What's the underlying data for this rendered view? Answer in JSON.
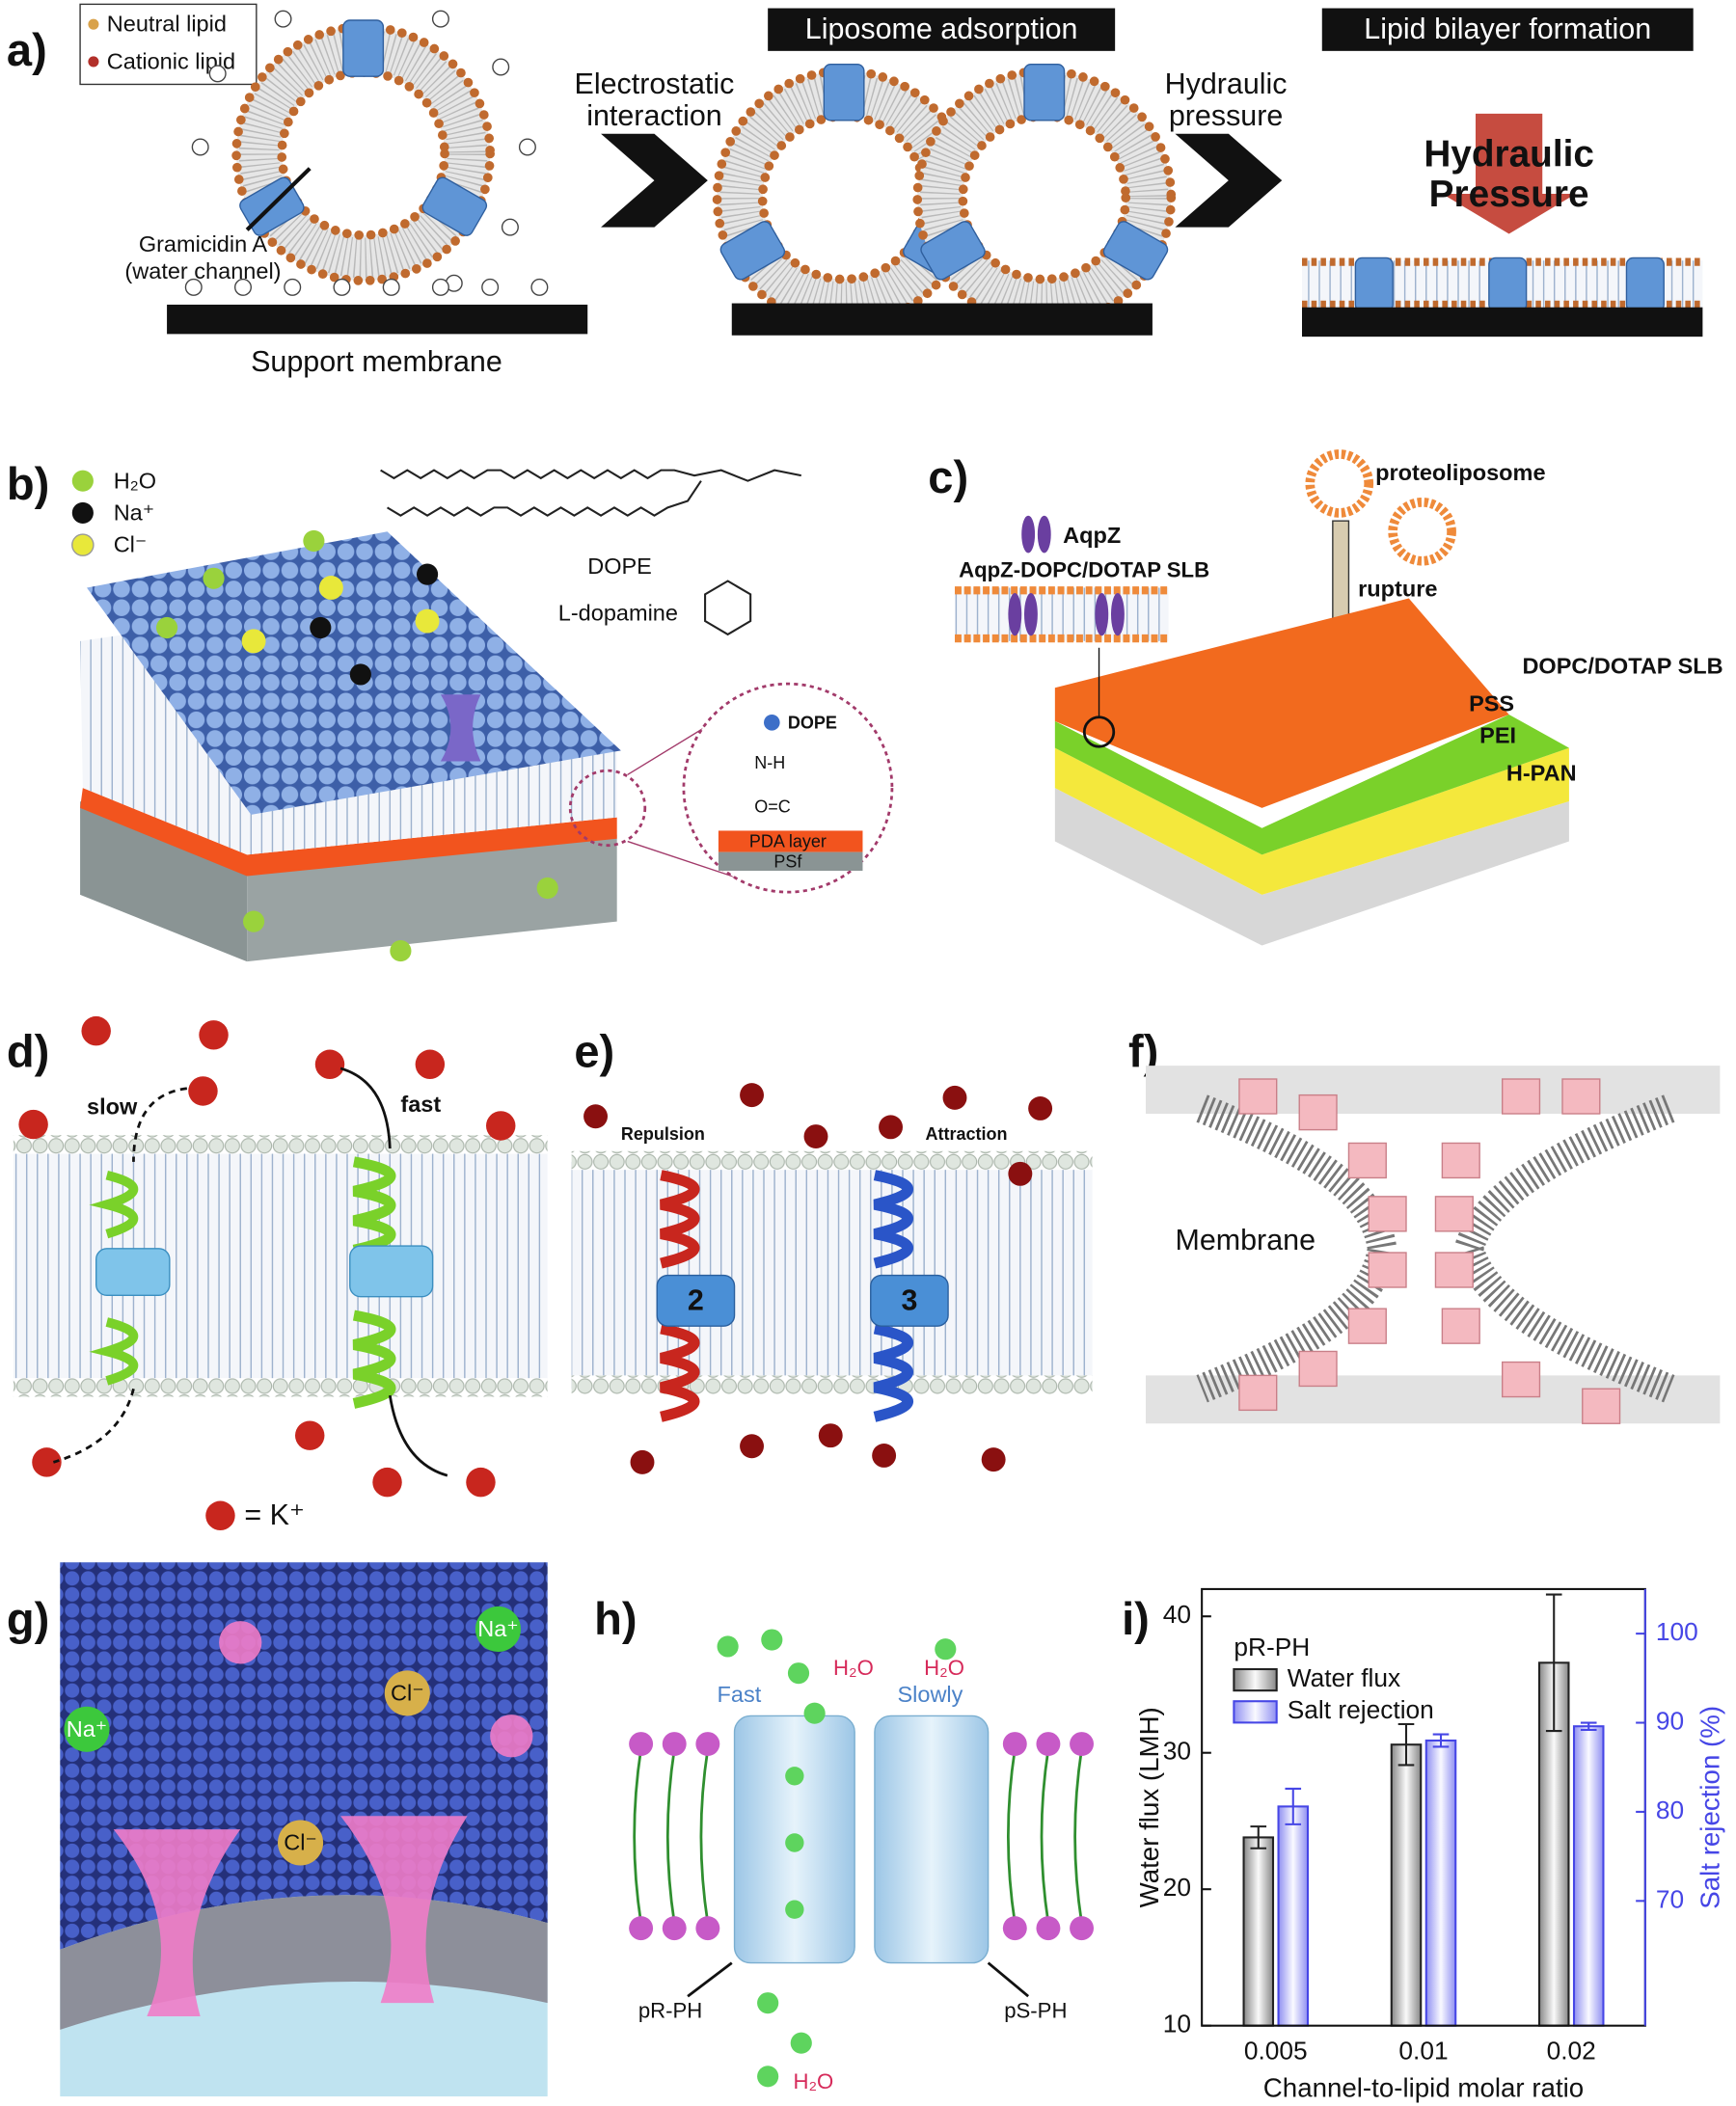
{
  "panels": {
    "a": {
      "label": "a)",
      "legend": [
        "Neutral lipid",
        "Cationic lipid"
      ],
      "channel_label": [
        "Gramicidin A",
        "(water channel)"
      ],
      "support": "Support membrane",
      "step1": [
        "Electrostatic",
        "interaction"
      ],
      "title1": "Liposome adsorption",
      "step2": [
        "Hydraulic",
        "pressure"
      ],
      "title2": "Lipid bilayer formation",
      "arrow_label": [
        "Hydraulic",
        "Pressure"
      ]
    },
    "b": {
      "label": "b)",
      "legend": [
        "H₂O",
        "Na⁺",
        "Cl⁻"
      ],
      "lipid": "DOPE",
      "dopamine": "L-dopamine",
      "inset": [
        "DOPE",
        "N-H",
        "O=C",
        "PDA layer",
        "PSf"
      ]
    },
    "c": {
      "label": "c)",
      "protein": "AqpZ",
      "vesicle": "proteoliposome",
      "slb": "AqpZ-DOPC/DOTAP SLB",
      "arrow": "rupture",
      "layers": [
        "DOPC/DOTAP SLB",
        "PSS",
        "PEI",
        "H-PAN"
      ]
    },
    "d": {
      "label": "d)",
      "slow": "slow",
      "fast": "fast",
      "key": "= K⁺"
    },
    "e": {
      "label": "e)",
      "left": "Repulsion",
      "right": "Attraction",
      "channels": [
        "2",
        "3"
      ]
    },
    "f": {
      "label": "f)",
      "membrane": "Membrane"
    },
    "g": {
      "label": "g)",
      "ions": [
        "Na⁺",
        "Cl⁻",
        "Na⁺",
        "Cl⁻"
      ]
    },
    "h": {
      "label": "h)",
      "fast": "Fast",
      "slow": "Slowly",
      "water": [
        "H₂O",
        "H₂O",
        "H₂O"
      ],
      "left": "pR-PH",
      "right": "pS-PH"
    },
    "i": {
      "label": "i)"
    }
  },
  "chart_data": {
    "type": "bar",
    "legend_title": "pR-PH",
    "categories": [
      "0.005",
      "0.01",
      "0.02"
    ],
    "x_label": "Channel-to-lipid molar ratio",
    "y_label": "Water flux (LMH)",
    "y2_label": "Salt rejection (%)",
    "series": [
      {
        "name": "Water flux",
        "color": "#222222",
        "values": [
          23.8,
          30.6,
          36.6
        ],
        "errors": [
          0.8,
          1.5,
          5
        ]
      },
      {
        "name": "Salt rejection",
        "color": "#4646e6",
        "values": [
          80.6,
          88,
          89.6
        ],
        "errors": [
          2,
          0.7,
          0.4
        ],
        "axis": "y2"
      }
    ],
    "ylim": [
      10,
      42
    ],
    "yticks": [
      10,
      20,
      30,
      40
    ],
    "y2lim": [
      56,
      105
    ],
    "y2ticks": [
      70,
      80,
      90,
      100
    ]
  }
}
